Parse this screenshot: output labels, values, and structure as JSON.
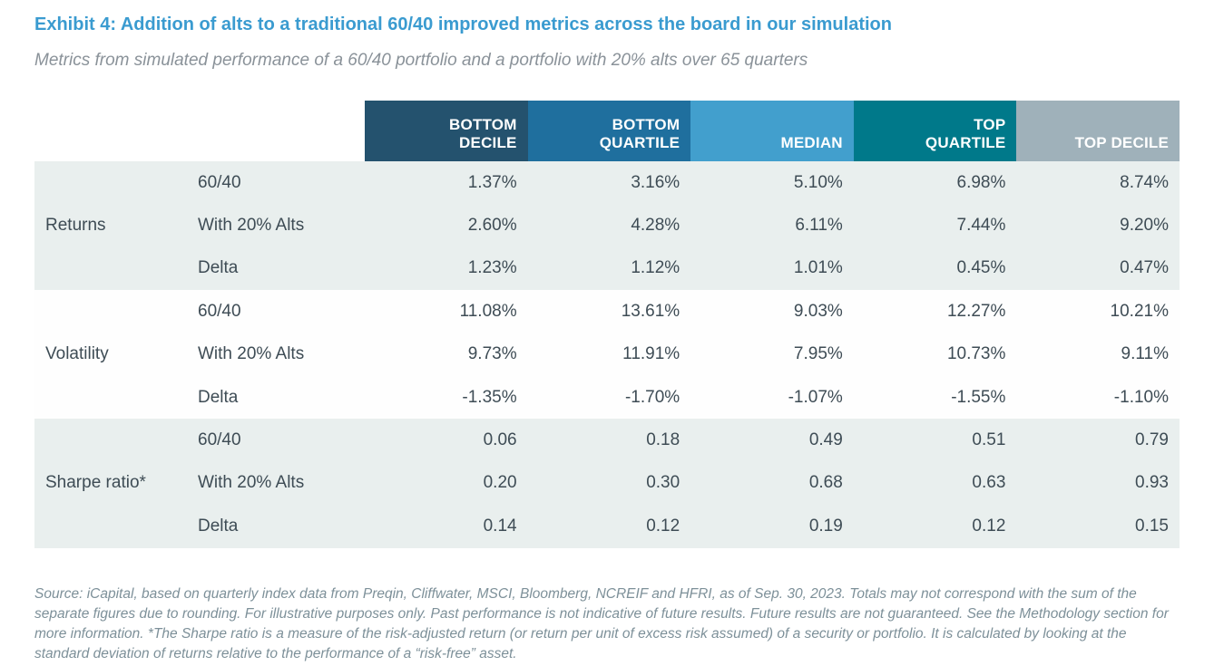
{
  "title": "Exhibit 4: Addition of alts to a traditional 60/40 improved metrics across the board in our simulation",
  "subtitle": "Metrics from simulated performance of a 60/40 portfolio and a portfolio with 20% alts over 65 quarters",
  "colors": {
    "title_blue": "#3a9bd0",
    "body_text": "#3e4c55",
    "subtitle_gray": "#8a9299",
    "footnote_gray": "#7d9099",
    "band_shaded": "#e9efee",
    "band_plain": "#fefefe"
  },
  "table": {
    "column_headers": [
      {
        "label": "BOTTOM\nDECILE",
        "color": "#24526e"
      },
      {
        "label": "BOTTOM\nQUARTILE",
        "color": "#1f6f9e"
      },
      {
        "label": "MEDIAN",
        "color": "#429fcd"
      },
      {
        "label": "TOP\nQUARTILE",
        "color": "#00798a"
      },
      {
        "label": "TOP DECILE",
        "color": "#9fb1ba"
      }
    ],
    "sections": [
      {
        "label": "Returns",
        "shaded": true,
        "rows": [
          {
            "label": "60/40",
            "values": [
              "1.37%",
              "3.16%",
              "5.10%",
              "6.98%",
              "8.74%"
            ]
          },
          {
            "label": "With 20% Alts",
            "values": [
              "2.60%",
              "4.28%",
              "6.11%",
              "7.44%",
              "9.20%"
            ]
          },
          {
            "label": "Delta",
            "values": [
              "1.23%",
              "1.12%",
              "1.01%",
              "0.45%",
              "0.47%"
            ]
          }
        ]
      },
      {
        "label": "Volatility",
        "shaded": false,
        "rows": [
          {
            "label": "60/40",
            "values": [
              "11.08%",
              "13.61%",
              "9.03%",
              "12.27%",
              "10.21%"
            ]
          },
          {
            "label": "With 20% Alts",
            "values": [
              "9.73%",
              "11.91%",
              "7.95%",
              "10.73%",
              "9.11%"
            ]
          },
          {
            "label": "Delta",
            "values": [
              "-1.35%",
              "-1.70%",
              "-1.07%",
              "-1.55%",
              "-1.10%"
            ]
          }
        ]
      },
      {
        "label": "Sharpe ratio*",
        "shaded": true,
        "rows": [
          {
            "label": "60/40",
            "values": [
              "0.06",
              "0.18",
              "0.49",
              "0.51",
              "0.79"
            ]
          },
          {
            "label": "With 20% Alts",
            "values": [
              "0.20",
              "0.30",
              "0.68",
              "0.63",
              "0.93"
            ]
          },
          {
            "label": "Delta",
            "values": [
              "0.14",
              "0.12",
              "0.19",
              "0.12",
              "0.15"
            ]
          }
        ]
      }
    ]
  },
  "footnote": "Source: iCapital, based on quarterly index data from Preqin, Cliffwater, MSCI, Bloomberg, NCREIF and HFRI, as of Sep.  30, 2023. Totals may not correspond with the sum of the separate figures due to rounding. For illustrative purposes only. Past performance is not indicative of future results. Future results are not guaranteed. See the Methodology section for more information. *The Sharpe ratio is a measure of the risk-adjusted return (or return per unit of excess risk assumed) of a security or portfolio. It is calculated by looking at the standard deviation of returns relative to the performance of a “risk-free” asset."
}
